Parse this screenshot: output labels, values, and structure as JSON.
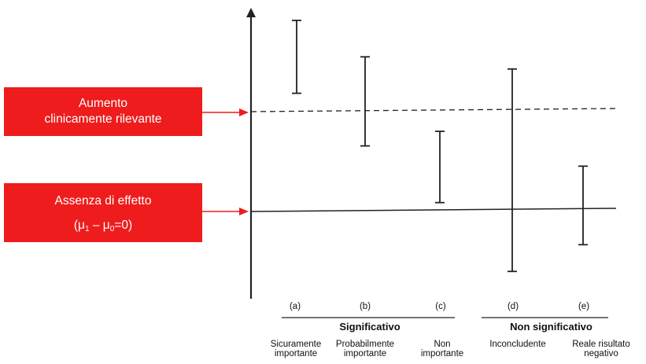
{
  "boxes": {
    "clinically_relevant": {
      "line1": "Aumento",
      "line2": "clinicamente rilevante"
    },
    "no_effect": {
      "line1": "Assenza di effetto",
      "mu": "μ",
      "sub1": "1",
      "minus": " – ",
      "sub0": "0",
      "eq": "=0"
    }
  },
  "intervals": [
    {
      "id": "a",
      "label": "(a)",
      "desc1": "Sicuramente",
      "desc2": "importante",
      "lower": 1.45,
      "upper": 2.35
    },
    {
      "id": "b",
      "label": "(b)",
      "desc1": "Probabilmente",
      "desc2": "importante",
      "lower": 0.8,
      "upper": 1.9
    },
    {
      "id": "c",
      "label": "(c)",
      "desc1": "Non",
      "desc2": "importante",
      "lower": 0.1,
      "upper": 0.98
    },
    {
      "id": "d",
      "label": "(d)",
      "desc1": "Inconcludente",
      "desc2": "",
      "lower": -0.75,
      "upper": 1.75
    },
    {
      "id": "e",
      "label": "(e)",
      "desc1": "Reale risultato",
      "desc2": "negativo",
      "lower": -0.42,
      "upper": 0.55
    }
  ],
  "reference_lines": {
    "no_effect": 0,
    "clinically_relevant": 1.22
  },
  "groups": {
    "significant": "Significativo",
    "not_significant": "Non significativo"
  },
  "colors": {
    "box_fill": "#ee1c1c",
    "arrow": "#ee1c1c",
    "lines": "#222222"
  }
}
